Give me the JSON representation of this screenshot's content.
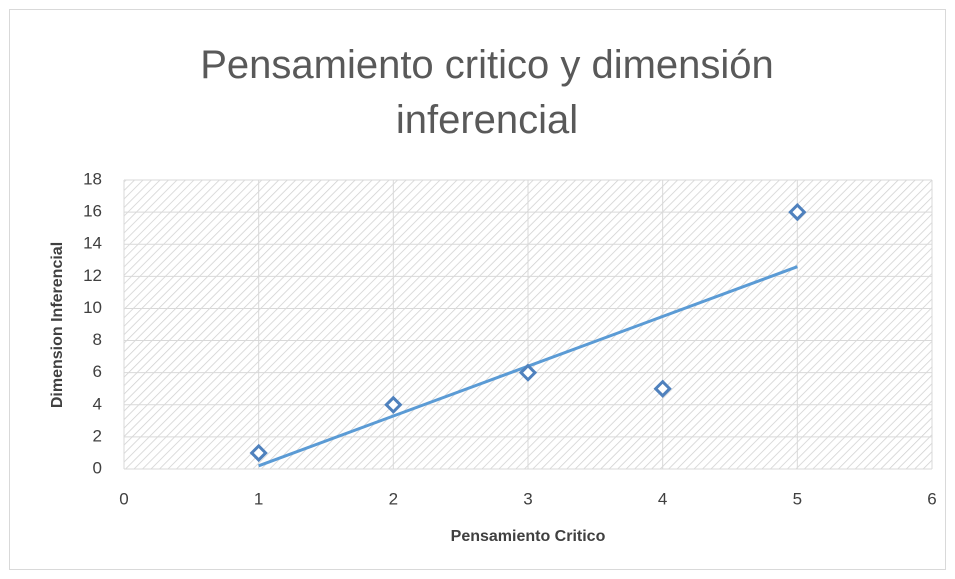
{
  "chart_data": {
    "type": "scatter",
    "title": "Pensamiento critico y dimensión inferencial",
    "x_label": "Pensamiento Critico",
    "y_label": "Dimension Inferencial",
    "series": [
      {
        "name": "Dimension Inferencial",
        "color": "#4f81bd",
        "x": [
          1,
          2,
          3,
          4,
          5
        ],
        "values": [
          1,
          4,
          6,
          5,
          16
        ]
      }
    ],
    "trendline": {
      "color": "#5b9bd5",
      "x": [
        1,
        5
      ],
      "values": [
        0.2,
        12.6
      ]
    },
    "xlim": [
      0,
      6
    ],
    "xticks": [
      0,
      1,
      2,
      3,
      4,
      5,
      6
    ],
    "ylim": [
      0,
      18
    ],
    "yticks": [
      0,
      2,
      4,
      6,
      8,
      10,
      12,
      14,
      16,
      18
    ],
    "grid": true
  }
}
